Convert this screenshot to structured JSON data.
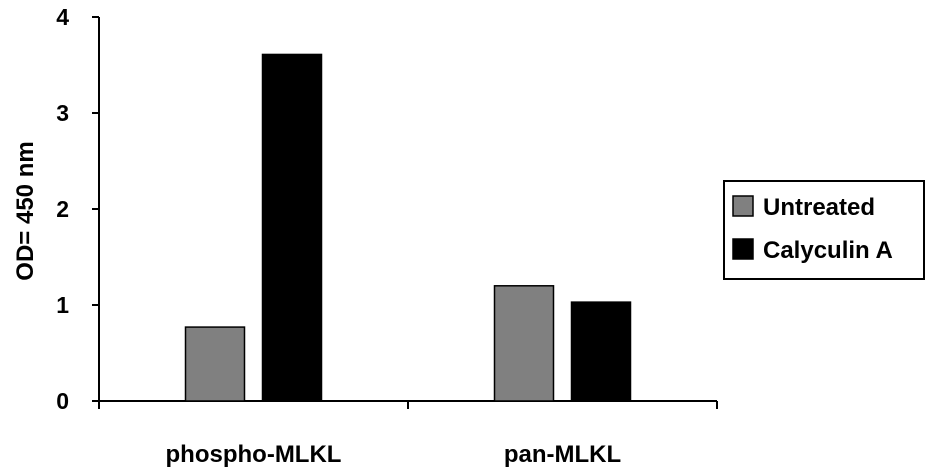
{
  "chart_data": {
    "type": "bar",
    "categories": [
      "phospho-MLKL",
      "pan-MLKL"
    ],
    "series": [
      {
        "name": "Untreated",
        "color": "#808080",
        "values": [
          0.77,
          1.2
        ]
      },
      {
        "name": "Calyculin A",
        "color": "#000000",
        "values": [
          3.61,
          1.03
        ]
      }
    ],
    "ylabel": "OD= 450 nm",
    "ylim": [
      0,
      4
    ],
    "yticks": [
      0,
      1,
      2,
      3,
      4
    ],
    "grid": false,
    "legend_position": "right"
  }
}
